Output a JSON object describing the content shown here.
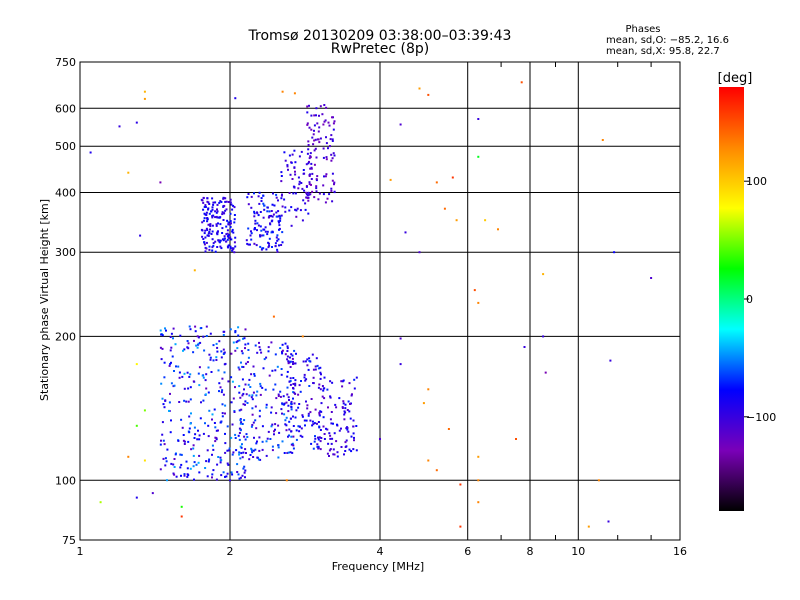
{
  "chart_data": {
    "type": "scatter",
    "title": "Tromsø 20130209 03:38:00–03:39:43",
    "subtitle": "RwPretec (8p)",
    "xlabel": "Frequency [MHz]",
    "ylabel": "Stationary phase Virtual Height [km]",
    "x_scale": "log",
    "y_scale": "log",
    "xlim": [
      1,
      16
    ],
    "ylim": [
      75,
      750
    ],
    "x_ticks": [
      1,
      2,
      4,
      6,
      8,
      10,
      16
    ],
    "y_ticks": [
      75,
      100,
      200,
      300,
      400,
      500,
      600,
      750
    ],
    "grid": true,
    "stats": {
      "heading": "Phases",
      "line_o": "mean, sd,O: −85.2, 16.6",
      "line_x": "mean, sd,X:  95.8, 22.7"
    },
    "colorbar": {
      "label": "[deg]",
      "ticks": [
        100,
        0,
        -100
      ],
      "tick_labels": [
        "100",
        "0",
        "−100"
      ],
      "range": [
        -180,
        180
      ],
      "colors": [
        "#000000",
        "#7a00b8",
        "#0000ff",
        "#00ffff",
        "#00ff00",
        "#ffff00",
        "#ff8800",
        "#ff0000"
      ]
    },
    "clusters": [
      {
        "x": [
          1.75,
          2.05
        ],
        "y": [
          300,
          390
        ],
        "n": 180,
        "phase": [
          -110,
          -70
        ]
      },
      {
        "x": [
          2.15,
          2.55
        ],
        "y": [
          300,
          400
        ],
        "n": 120,
        "phase": [
          -110,
          -60
        ]
      },
      {
        "x": [
          2.5,
          2.9
        ],
        "y": [
          340,
          490
        ],
        "n": 70,
        "phase": [
          -120,
          -80
        ]
      },
      {
        "x": [
          2.85,
          3.25
        ],
        "y": [
          380,
          610
        ],
        "n": 110,
        "phase": [
          -130,
          -90
        ]
      },
      {
        "x": [
          1.45,
          2.15
        ],
        "y": [
          100,
          210
        ],
        "n": 330,
        "phase": [
          -120,
          -40
        ]
      },
      {
        "x": [
          2.1,
          2.7
        ],
        "y": [
          110,
          195
        ],
        "n": 180,
        "phase": [
          -120,
          -50
        ]
      },
      {
        "x": [
          2.6,
          3.05
        ],
        "y": [
          115,
          185
        ],
        "n": 120,
        "phase": [
          -120,
          -60
        ]
      },
      {
        "x": [
          3.0,
          3.6
        ],
        "y": [
          112,
          165
        ],
        "n": 110,
        "phase": [
          -120,
          -70
        ]
      }
    ],
    "points": [
      {
        "x": 1.05,
        "y": 485,
        "phase": -90
      },
      {
        "x": 1.2,
        "y": 550,
        "phase": -100
      },
      {
        "x": 1.3,
        "y": 560,
        "phase": -95
      },
      {
        "x": 1.35,
        "y": 650,
        "phase": 110
      },
      {
        "x": 1.35,
        "y": 628,
        "phase": 120
      },
      {
        "x": 1.25,
        "y": 440,
        "phase": 110
      },
      {
        "x": 1.45,
        "y": 420,
        "phase": -130
      },
      {
        "x": 1.32,
        "y": 325,
        "phase": -95
      },
      {
        "x": 2.55,
        "y": 650,
        "phase": 130
      },
      {
        "x": 2.7,
        "y": 645,
        "phase": 130
      },
      {
        "x": 2.05,
        "y": 630,
        "phase": -90
      },
      {
        "x": 4.4,
        "y": 555,
        "phase": -110
      },
      {
        "x": 4.8,
        "y": 660,
        "phase": 120
      },
      {
        "x": 5.0,
        "y": 640,
        "phase": 150
      },
      {
        "x": 4.2,
        "y": 425,
        "phase": 120
      },
      {
        "x": 5.2,
        "y": 420,
        "phase": 140
      },
      {
        "x": 5.6,
        "y": 430,
        "phase": 160
      },
      {
        "x": 5.4,
        "y": 370,
        "phase": 140
      },
      {
        "x": 4.5,
        "y": 330,
        "phase": -100
      },
      {
        "x": 4.8,
        "y": 300,
        "phase": -110
      },
      {
        "x": 5.7,
        "y": 350,
        "phase": 120
      },
      {
        "x": 6.3,
        "y": 570,
        "phase": -100
      },
      {
        "x": 6.3,
        "y": 475,
        "phase": 20
      },
      {
        "x": 6.5,
        "y": 350,
        "phase": 100
      },
      {
        "x": 6.2,
        "y": 250,
        "phase": 150
      },
      {
        "x": 6.3,
        "y": 235,
        "phase": 130
      },
      {
        "x": 6.9,
        "y": 335,
        "phase": 130
      },
      {
        "x": 7.7,
        "y": 680,
        "phase": 150
      },
      {
        "x": 8.5,
        "y": 270,
        "phase": 110
      },
      {
        "x": 8.5,
        "y": 200,
        "phase": -100
      },
      {
        "x": 7.8,
        "y": 190,
        "phase": -100
      },
      {
        "x": 8.6,
        "y": 168,
        "phase": -130
      },
      {
        "x": 11.2,
        "y": 515,
        "phase": 130
      },
      {
        "x": 11.8,
        "y": 300,
        "phase": -80
      },
      {
        "x": 14.0,
        "y": 265,
        "phase": -110
      },
      {
        "x": 11.6,
        "y": 178,
        "phase": -100
      },
      {
        "x": 4.4,
        "y": 198,
        "phase": -110
      },
      {
        "x": 4.4,
        "y": 175,
        "phase": -100
      },
      {
        "x": 5.0,
        "y": 155,
        "phase": 130
      },
      {
        "x": 4.9,
        "y": 145,
        "phase": 120
      },
      {
        "x": 5.5,
        "y": 128,
        "phase": 140
      },
      {
        "x": 4.0,
        "y": 122,
        "phase": -110
      },
      {
        "x": 5.0,
        "y": 110,
        "phase": 130
      },
      {
        "x": 5.2,
        "y": 105,
        "phase": 140
      },
      {
        "x": 6.3,
        "y": 112,
        "phase": 120
      },
      {
        "x": 6.3,
        "y": 100,
        "phase": 130
      },
      {
        "x": 7.5,
        "y": 122,
        "phase": 150
      },
      {
        "x": 5.8,
        "y": 98,
        "phase": 160
      },
      {
        "x": 6.3,
        "y": 90,
        "phase": 130
      },
      {
        "x": 5.8,
        "y": 80,
        "phase": 160
      },
      {
        "x": 11.0,
        "y": 100,
        "phase": 130
      },
      {
        "x": 10.5,
        "y": 80,
        "phase": 120
      },
      {
        "x": 11.5,
        "y": 82,
        "phase": -100
      },
      {
        "x": 1.1,
        "y": 90,
        "phase": 60
      },
      {
        "x": 1.3,
        "y": 92,
        "phase": -90
      },
      {
        "x": 1.4,
        "y": 94,
        "phase": -110
      },
      {
        "x": 1.6,
        "y": 88,
        "phase": 30
      },
      {
        "x": 1.6,
        "y": 84,
        "phase": 160
      },
      {
        "x": 1.25,
        "y": 112,
        "phase": 130
      },
      {
        "x": 1.35,
        "y": 110,
        "phase": 90
      },
      {
        "x": 1.3,
        "y": 175,
        "phase": 80
      },
      {
        "x": 1.35,
        "y": 140,
        "phase": 50
      },
      {
        "x": 1.3,
        "y": 130,
        "phase": 40
      },
      {
        "x": 2.6,
        "y": 100,
        "phase": 130
      },
      {
        "x": 2.0,
        "y": 100,
        "phase": -95
      },
      {
        "x": 2.8,
        "y": 200,
        "phase": 130
      },
      {
        "x": 1.7,
        "y": 275,
        "phase": 110
      },
      {
        "x": 2.45,
        "y": 220,
        "phase": 140
      }
    ]
  }
}
